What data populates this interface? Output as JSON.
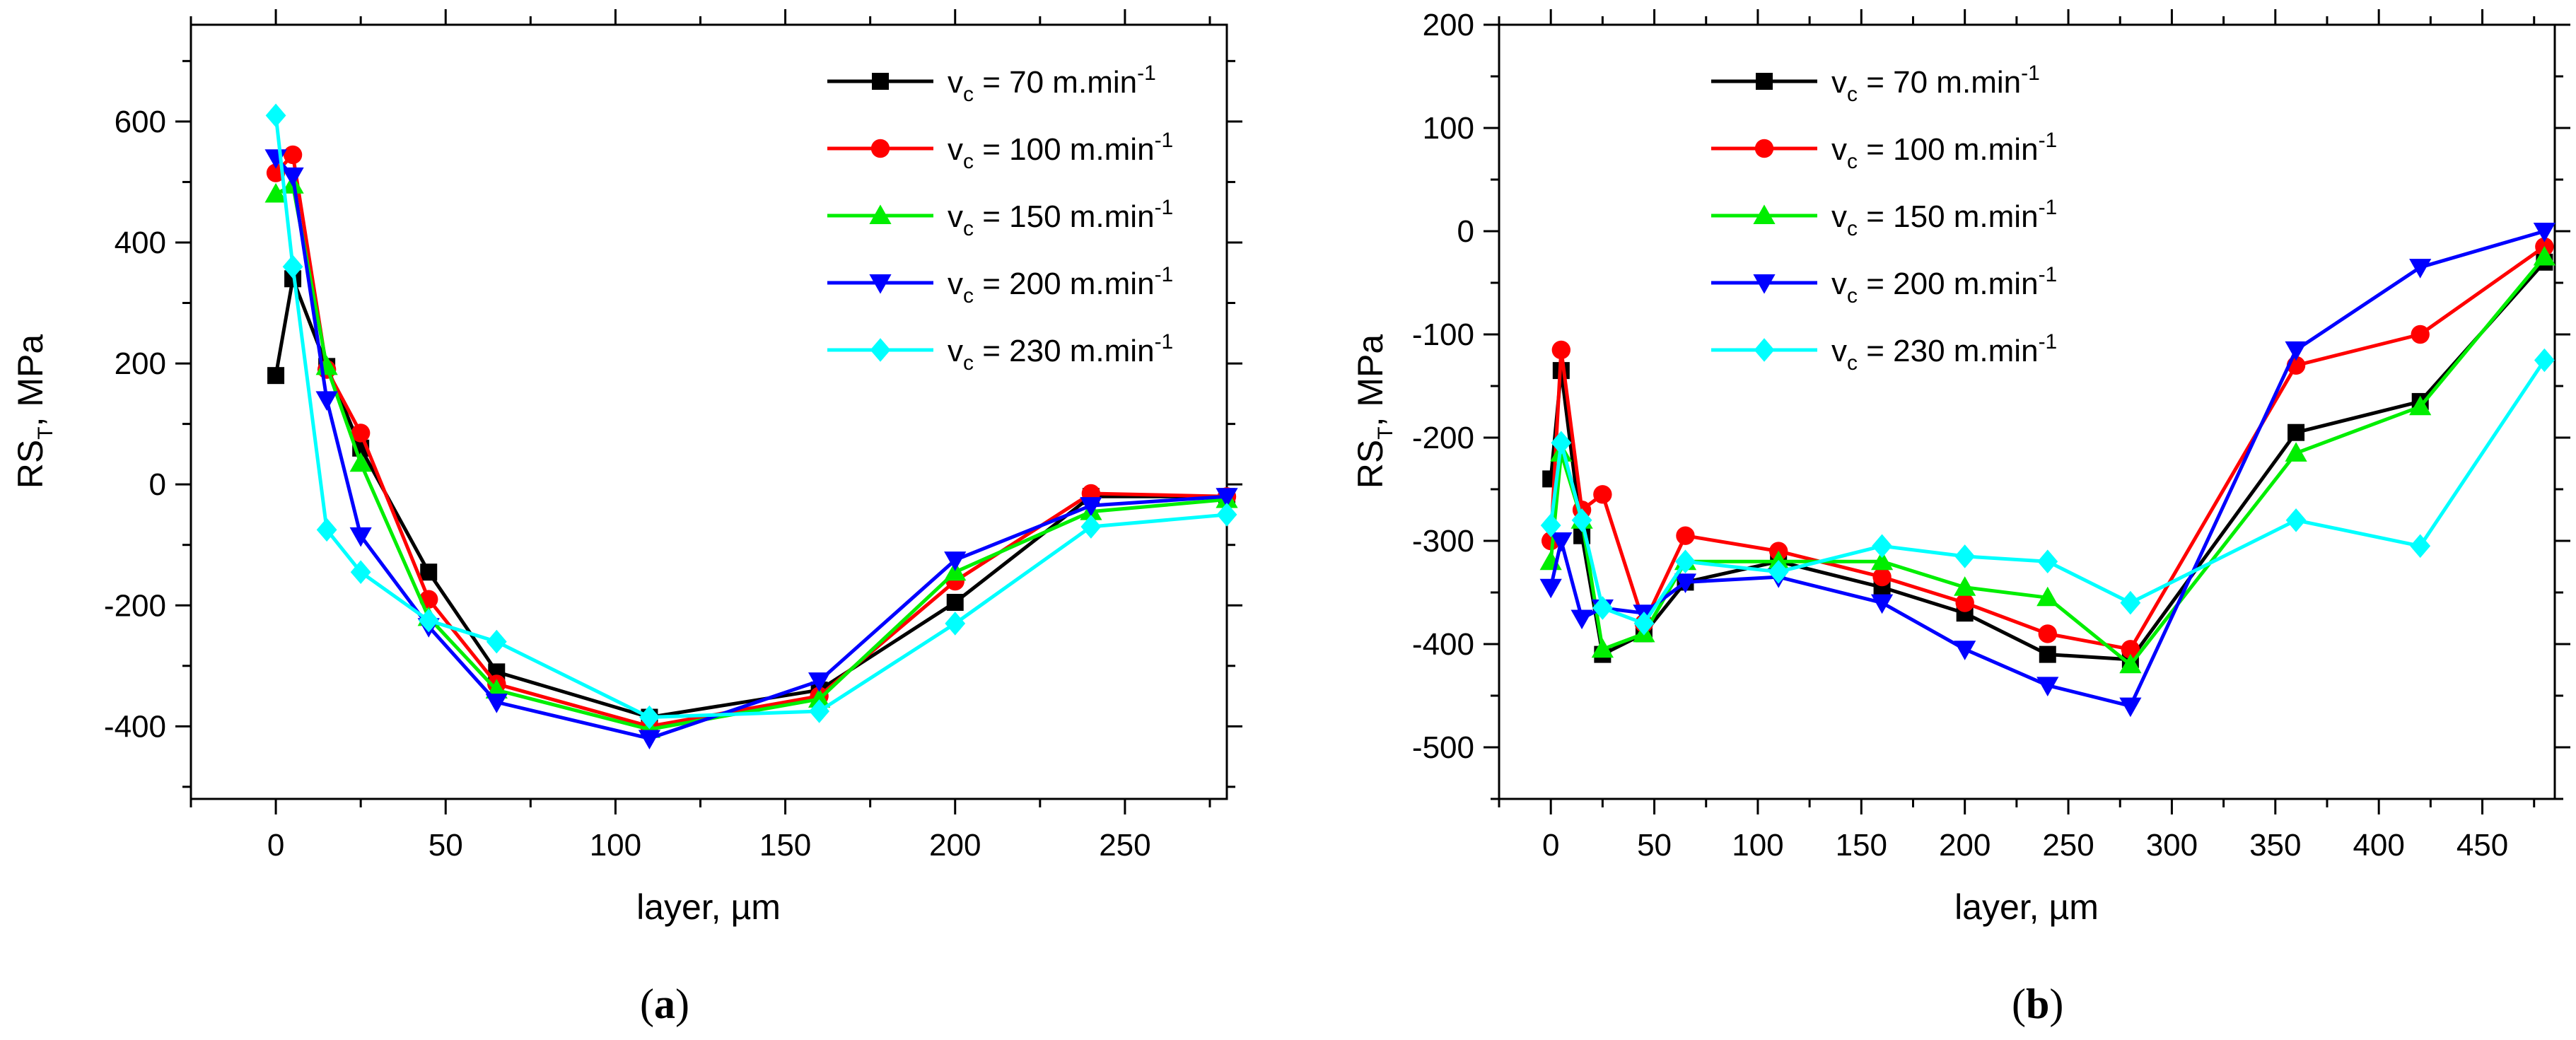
{
  "chart_data": [
    {
      "type": "line",
      "panel_label": "a",
      "xlabel": "layer, µm",
      "ylabel_main": "RS",
      "ylabel_sub": "T",
      "ylabel_tail": ", MPa",
      "xlim": [
        -25,
        280
      ],
      "ylim": [
        -520,
        760
      ],
      "xticks": [
        0,
        50,
        100,
        150,
        200,
        250
      ],
      "yticks": [
        -400,
        -200,
        0,
        200,
        400,
        600
      ],
      "legend_position": "top-right",
      "series": [
        {
          "name": "v",
          "sub": "c",
          "label": " = 70 m.min",
          "sup": "-1",
          "color": "#000000",
          "marker": "square",
          "x": [
            0,
            5,
            15,
            25,
            45,
            65,
            110,
            160,
            200,
            240,
            280
          ],
          "y": [
            180,
            340,
            195,
            60,
            -145,
            -310,
            -385,
            -340,
            -195,
            -20,
            -20
          ]
        },
        {
          "name": "v",
          "sub": "c",
          "label": " = 100 m.min",
          "sup": "-1",
          "color": "#ff0000",
          "marker": "circle",
          "x": [
            0,
            5,
            15,
            25,
            45,
            65,
            110,
            160,
            200,
            240,
            280
          ],
          "y": [
            515,
            545,
            190,
            85,
            -190,
            -330,
            -400,
            -350,
            -160,
            -15,
            -20
          ]
        },
        {
          "name": "v",
          "sub": "c",
          "label": " = 150 m.min",
          "sup": "-1",
          "color": "#00ee00",
          "marker": "triangle-up",
          "x": [
            0,
            5,
            15,
            25,
            45,
            65,
            110,
            160,
            200,
            240,
            280
          ],
          "y": [
            480,
            495,
            195,
            35,
            -220,
            -340,
            -405,
            -355,
            -145,
            -45,
            -25
          ]
        },
        {
          "name": "v",
          "sub": "c",
          "label": " = 200 m.min",
          "sup": "-1",
          "color": "#0000ff",
          "marker": "triangle-down",
          "x": [
            0,
            5,
            15,
            25,
            45,
            65,
            110,
            160,
            200,
            240,
            280
          ],
          "y": [
            540,
            510,
            140,
            -85,
            -235,
            -360,
            -420,
            -325,
            -125,
            -35,
            -20
          ]
        },
        {
          "name": "v",
          "sub": "c",
          "label": " = 230 m.min",
          "sup": "-1",
          "color": "#00ffff",
          "marker": "diamond",
          "x": [
            0,
            5,
            15,
            25,
            45,
            65,
            110,
            160,
            200,
            240,
            280
          ],
          "y": [
            610,
            360,
            -75,
            -145,
            -225,
            -260,
            -385,
            -375,
            -230,
            -70,
            -50
          ]
        }
      ]
    },
    {
      "type": "line",
      "panel_label": "b",
      "xlabel": "layer, µm",
      "ylabel_main": "RS",
      "ylabel_sub": "T",
      "ylabel_tail": ", MPa",
      "xlim": [
        -25,
        485
      ],
      "ylim": [
        -550,
        200
      ],
      "xticks": [
        0,
        50,
        100,
        150,
        200,
        250,
        300,
        350,
        400,
        450
      ],
      "yticks": [
        -500,
        -400,
        -300,
        -200,
        -100,
        0,
        100,
        200
      ],
      "legend_position": "top-left",
      "series": [
        {
          "name": "v",
          "sub": "c",
          "label": " = 70 m.min",
          "sup": "-1",
          "color": "#000000",
          "marker": "square",
          "x": [
            0,
            5,
            15,
            25,
            45,
            65,
            110,
            160,
            200,
            240,
            280,
            360,
            420,
            480
          ],
          "y": [
            -240,
            -135,
            -295,
            -410,
            -390,
            -340,
            -320,
            -345,
            -370,
            -410,
            -415,
            -195,
            -165,
            -30
          ]
        },
        {
          "name": "v",
          "sub": "c",
          "label": " = 100 m.min",
          "sup": "-1",
          "color": "#ff0000",
          "marker": "circle",
          "x": [
            0,
            5,
            15,
            25,
            45,
            65,
            110,
            160,
            200,
            240,
            280,
            360,
            420,
            480
          ],
          "y": [
            -300,
            -115,
            -270,
            -255,
            -380,
            -295,
            -310,
            -335,
            -360,
            -390,
            -405,
            -130,
            -100,
            -15
          ]
        },
        {
          "name": "v",
          "sub": "c",
          "label": " = 150 m.min",
          "sup": "-1",
          "color": "#00ee00",
          "marker": "triangle-up",
          "x": [
            0,
            5,
            15,
            25,
            45,
            65,
            110,
            160,
            200,
            240,
            280,
            360,
            420,
            480
          ],
          "y": [
            -320,
            -215,
            -280,
            -405,
            -390,
            -320,
            -320,
            -320,
            -345,
            -355,
            -420,
            -215,
            -170,
            -25
          ]
        },
        {
          "name": "v",
          "sub": "c",
          "label": " = 200 m.min",
          "sup": "-1",
          "color": "#0000ff",
          "marker": "triangle-down",
          "x": [
            0,
            5,
            15,
            25,
            45,
            65,
            110,
            160,
            200,
            240,
            280,
            360,
            420,
            480
          ],
          "y": [
            -345,
            -300,
            -375,
            -365,
            -370,
            -340,
            -335,
            -360,
            -405,
            -440,
            -460,
            -115,
            -35,
            0
          ]
        },
        {
          "name": "v",
          "sub": "c",
          "label": " = 230 m.min",
          "sup": "-1",
          "color": "#00ffff",
          "marker": "diamond",
          "x": [
            0,
            5,
            15,
            25,
            45,
            65,
            110,
            160,
            200,
            240,
            280,
            360,
            420,
            480
          ],
          "y": [
            -285,
            -205,
            -280,
            -365,
            -380,
            -320,
            -330,
            -305,
            -315,
            -320,
            -360,
            -280,
            -305,
            -125
          ]
        }
      ]
    }
  ]
}
